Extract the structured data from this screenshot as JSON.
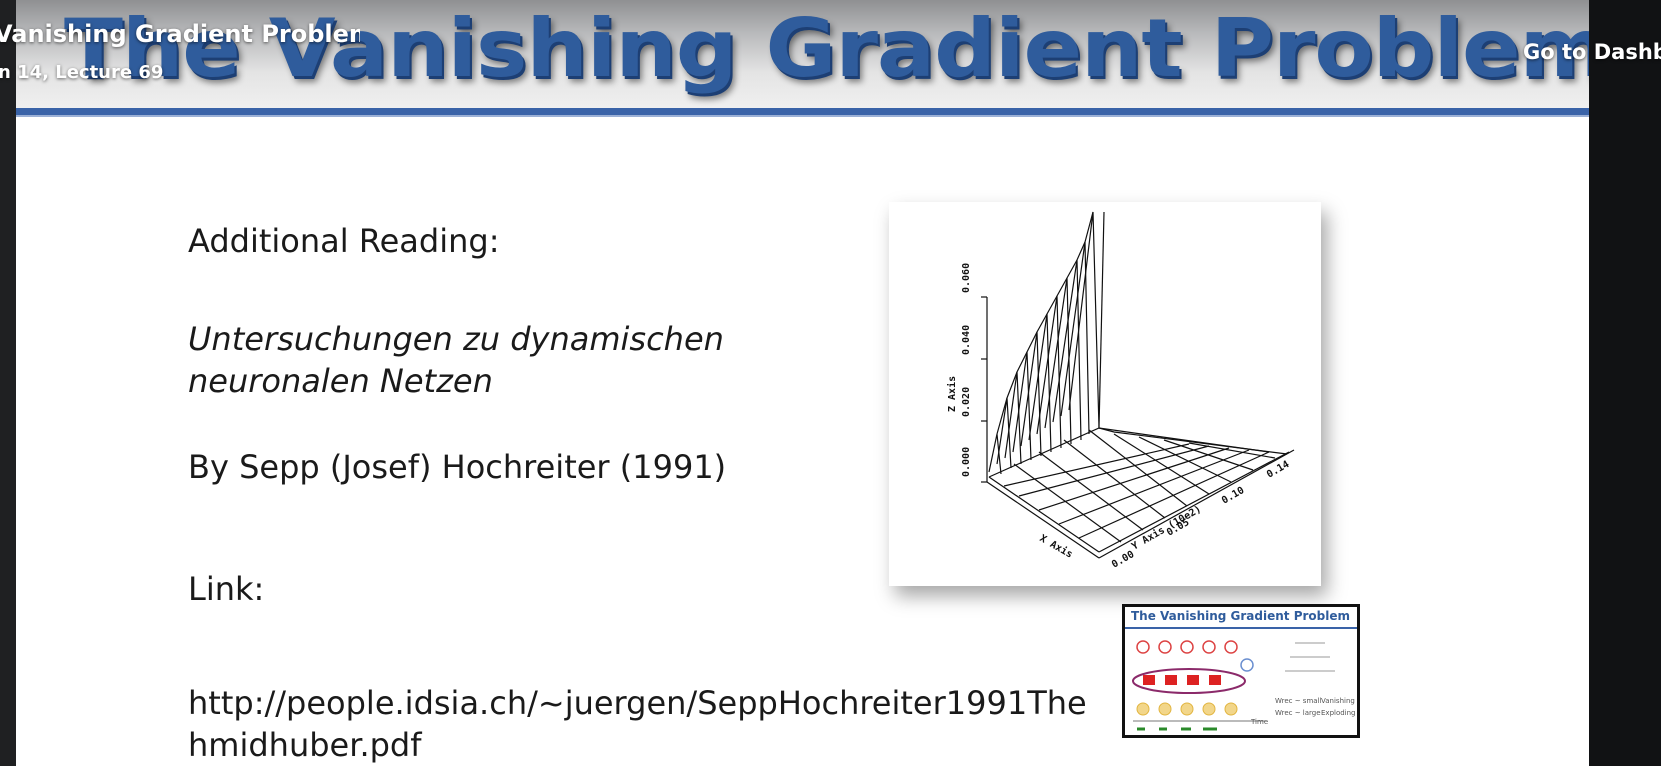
{
  "player": {
    "lecture_title": "Vanishing Gradient Problem",
    "lecture_subtitle": "n 14, Lecture 69",
    "dashboard_link": "Go to Dashbo"
  },
  "slide": {
    "title": "The Vanishing Gradient Problem",
    "heading": "Additional Reading:",
    "book_line1": "Untersuchungen zu dynamischen",
    "book_line2": "neuronalen Netzen",
    "author": "By Sepp (Josef) Hochreiter (1991)",
    "link_label": "Link:",
    "url_line1": "http://people.idsia.ch/~juergen/SeppHochreiter1991The",
    "url_line2": "hmidhuber.pdf"
  },
  "figure": {
    "z_axis_label": "Z Axis",
    "x_axis_label": "X Axis",
    "y_axis_label": "Y Axis (10e2)",
    "z_ticks": [
      "0.000",
      "0.020",
      "0.040",
      "0.060"
    ],
    "y_ticks": [
      "0.00",
      "0.05",
      "0.10",
      "0.14"
    ]
  },
  "thumbnail": {
    "title": "The Vanishing Gradient Problem",
    "label_small": "Wrec ~ small",
    "label_vanishing": "Vanishing",
    "label_large": "Wrec ~ large",
    "label_exploding": "Exploding",
    "time_label": "Time"
  },
  "colors": {
    "title_blue": "#2f5c9c",
    "header_bar": "#3a63a8"
  }
}
